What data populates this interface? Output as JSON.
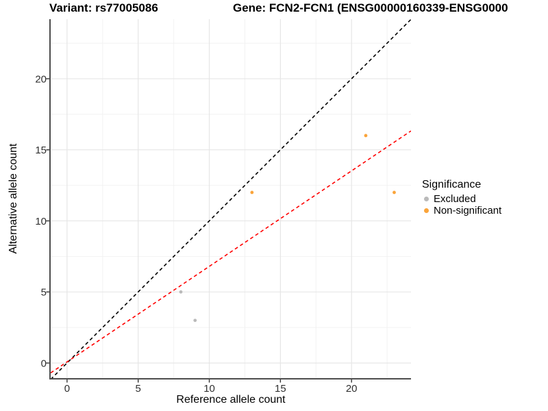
{
  "titles": {
    "variant": "Variant: rs77005086",
    "gene": "Gene: FCN2-FCN1 (ENSG00000160339-ENSG0000"
  },
  "axes": {
    "x_label": "Reference allele count",
    "y_label": "Alternative allele count"
  },
  "legend": {
    "title": "Significance",
    "items": [
      {
        "label": "Excluded",
        "color": "#BABABA"
      },
      {
        "label": "Non-significant",
        "color": "#FAA43A"
      }
    ]
  },
  "chart_data": {
    "type": "scatter",
    "title_left": "Variant: rs77005086",
    "title_right": "Gene: FCN2-FCN1 (ENSG00000160339-ENSG0000",
    "xlabel": "Reference allele count",
    "ylabel": "Alternative allele count",
    "xlim": [
      -1.15,
      24.18
    ],
    "ylim": [
      -1.11,
      24.19
    ],
    "x_ticks": [
      0,
      5,
      10,
      15,
      20
    ],
    "y_ticks": [
      0,
      5,
      10,
      15,
      20
    ],
    "grid": "major+minor",
    "legend_position": "right",
    "legend_title": "Significance",
    "series": [
      {
        "name": "Excluded",
        "color": "#BABABA",
        "points": [
          [
            8,
            5
          ],
          [
            9,
            3
          ]
        ]
      },
      {
        "name": "Non-significant",
        "color": "#FAA43A",
        "points": [
          [
            13,
            12
          ],
          [
            21,
            16
          ],
          [
            23,
            12
          ]
        ]
      }
    ],
    "reference_lines": [
      {
        "name": "identity-line",
        "slope": 1.0,
        "intercept": 0.0,
        "color": "#000000",
        "dash": "dashed"
      },
      {
        "name": "fit-line",
        "slope": 0.672,
        "intercept": 0.08,
        "color": "#FF0000",
        "dash": "dashed"
      }
    ],
    "style": {
      "grid_major_color": "#e6e6e6",
      "grid_minor_color": "#f2f2f2",
      "axis_line_color": "#4d4d4d",
      "tick_color": "#333333",
      "tick_label_color": "#303030",
      "point_radius": 2.4
    }
  }
}
